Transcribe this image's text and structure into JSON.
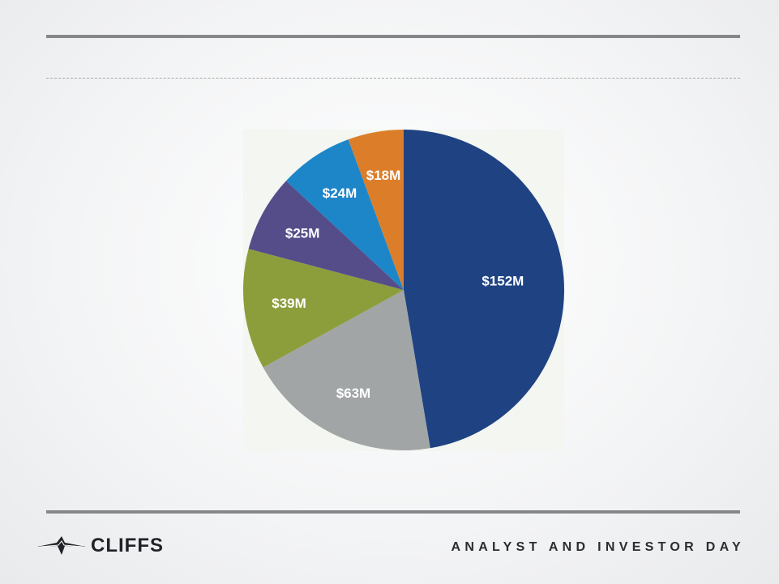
{
  "footer": {
    "logo_text": "CLIFFS",
    "event_text": "ANALYST AND INVESTOR DAY"
  },
  "colors": {
    "navy": "#1e4282",
    "gray": "#a1a5a6",
    "olive": "#8c9d3b",
    "purple": "#544d8a",
    "blue": "#1d86c9",
    "orange": "#dc7e29"
  },
  "chart_data": {
    "type": "pie",
    "title": "",
    "slices": [
      {
        "label": "$152M",
        "value": 152,
        "color": "#1e4282"
      },
      {
        "label": "$63M",
        "value": 63,
        "color": "#a1a5a6"
      },
      {
        "label": "$39M",
        "value": 39,
        "color": "#8c9d3b"
      },
      {
        "label": "$25M",
        "value": 25,
        "color": "#544d8a"
      },
      {
        "label": "$24M",
        "value": 24,
        "color": "#1d86c9"
      },
      {
        "label": "$18M",
        "value": 18,
        "color": "#dc7e29"
      }
    ]
  }
}
